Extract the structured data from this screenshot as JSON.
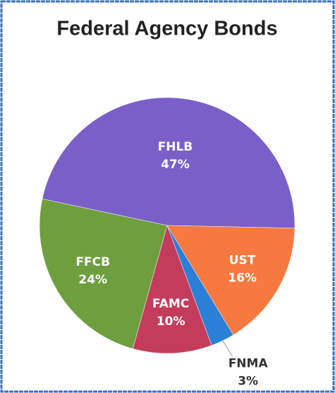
{
  "chart_data": {
    "type": "pie",
    "title": "Federal Agency Bonds",
    "labels": [
      "FHLB",
      "UST",
      "FNMA",
      "FAMC",
      "FFCB"
    ],
    "values": [
      47,
      16,
      3,
      10,
      24
    ],
    "value_labels": [
      "47%",
      "16%",
      "3%",
      "10%",
      "24%"
    ],
    "colors": [
      "#7b5fc9",
      "#f7793f",
      "#2b7fd6",
      "#c43c5c",
      "#6f9e3f"
    ]
  }
}
